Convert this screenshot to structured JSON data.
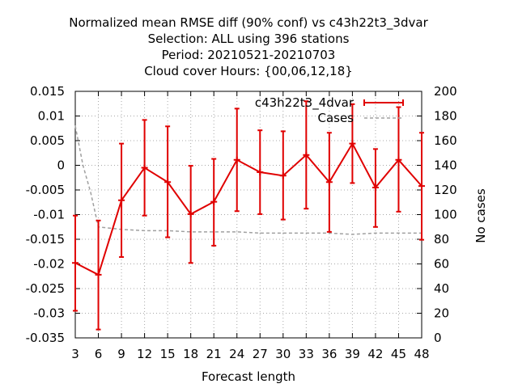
{
  "chart_data": {
    "type": "line",
    "title_lines": [
      "Normalized mean RMSE diff (90% conf) vs c43h22t3_3dvar",
      "Selection: ALL using   396 stations",
      "Period: 20210521-20210703",
      "Cloud cover   Hours: {00,06,12,18}"
    ],
    "xlabel": "Forecast length",
    "ylabel": "",
    "y2label": "No cases",
    "xlim": [
      3,
      48
    ],
    "ylim": [
      -0.035,
      0.015
    ],
    "y2lim": [
      0,
      200
    ],
    "xticks": [
      3,
      6,
      9,
      12,
      15,
      18,
      21,
      24,
      27,
      30,
      33,
      36,
      39,
      42,
      45,
      48
    ],
    "xtick_labels": [
      "3",
      "6",
      "9",
      "12",
      "15",
      "18",
      "21",
      "24",
      "27",
      "30",
      "33",
      "36",
      "39",
      "42",
      "45",
      "48"
    ],
    "yticks": [
      -0.035,
      -0.03,
      -0.025,
      -0.02,
      -0.015,
      -0.01,
      -0.005,
      0,
      0.005,
      0.01,
      0.015
    ],
    "ytick_labels": [
      "-0.035",
      "-0.03",
      "-0.025",
      "-0.02",
      "-0.015",
      "-0.01",
      "-0.005",
      "0",
      "0.005",
      "0.01",
      "0.015"
    ],
    "y2ticks": [
      0,
      20,
      40,
      60,
      80,
      100,
      120,
      140,
      160,
      180,
      200
    ],
    "y2tick_labels": [
      "0",
      "20",
      "40",
      "60",
      "80",
      "100",
      "120",
      "140",
      "160",
      "180",
      "200"
    ],
    "grid": true,
    "legend_position": "top-right",
    "series": [
      {
        "name": "c43h22t3_4dvar",
        "color": "#e00000",
        "axis": "left",
        "x": [
          3,
          6,
          9,
          12,
          15,
          18,
          21,
          24,
          27,
          30,
          33,
          36,
          39,
          42,
          45,
          48
        ],
        "y": [
          -0.0198,
          -0.0222,
          -0.0071,
          -0.0005,
          -0.0034,
          -0.0099,
          -0.0074,
          0.0011,
          -0.0014,
          -0.0021,
          0.0021,
          -0.0034,
          0.0044,
          -0.0045,
          0.0011,
          -0.0042
        ],
        "err_low": [
          -0.0295,
          -0.0333,
          -0.0186,
          -0.0102,
          -0.0146,
          -0.0198,
          -0.0163,
          -0.0093,
          -0.0099,
          -0.011,
          -0.0088,
          -0.0135,
          -0.0036,
          -0.0125,
          -0.0094,
          -0.0151
        ],
        "err_high": [
          -0.0102,
          -0.0112,
          0.0044,
          0.0092,
          0.0079,
          -0.0001,
          0.0013,
          0.0115,
          0.0071,
          0.0069,
          0.013,
          0.0066,
          0.0124,
          0.0033,
          0.0118,
          0.0066
        ]
      },
      {
        "name": "Cases",
        "color": "#a0a0a0",
        "axis": "right",
        "x": [
          3,
          4,
          5,
          6,
          9,
          12,
          15,
          18,
          21,
          24,
          27,
          30,
          33,
          36,
          39,
          42,
          45,
          48
        ],
        "y": [
          172,
          140,
          118,
          90,
          88,
          87,
          87,
          86,
          86,
          86,
          85,
          85,
          85,
          85,
          84,
          85,
          85,
          85
        ]
      }
    ]
  }
}
